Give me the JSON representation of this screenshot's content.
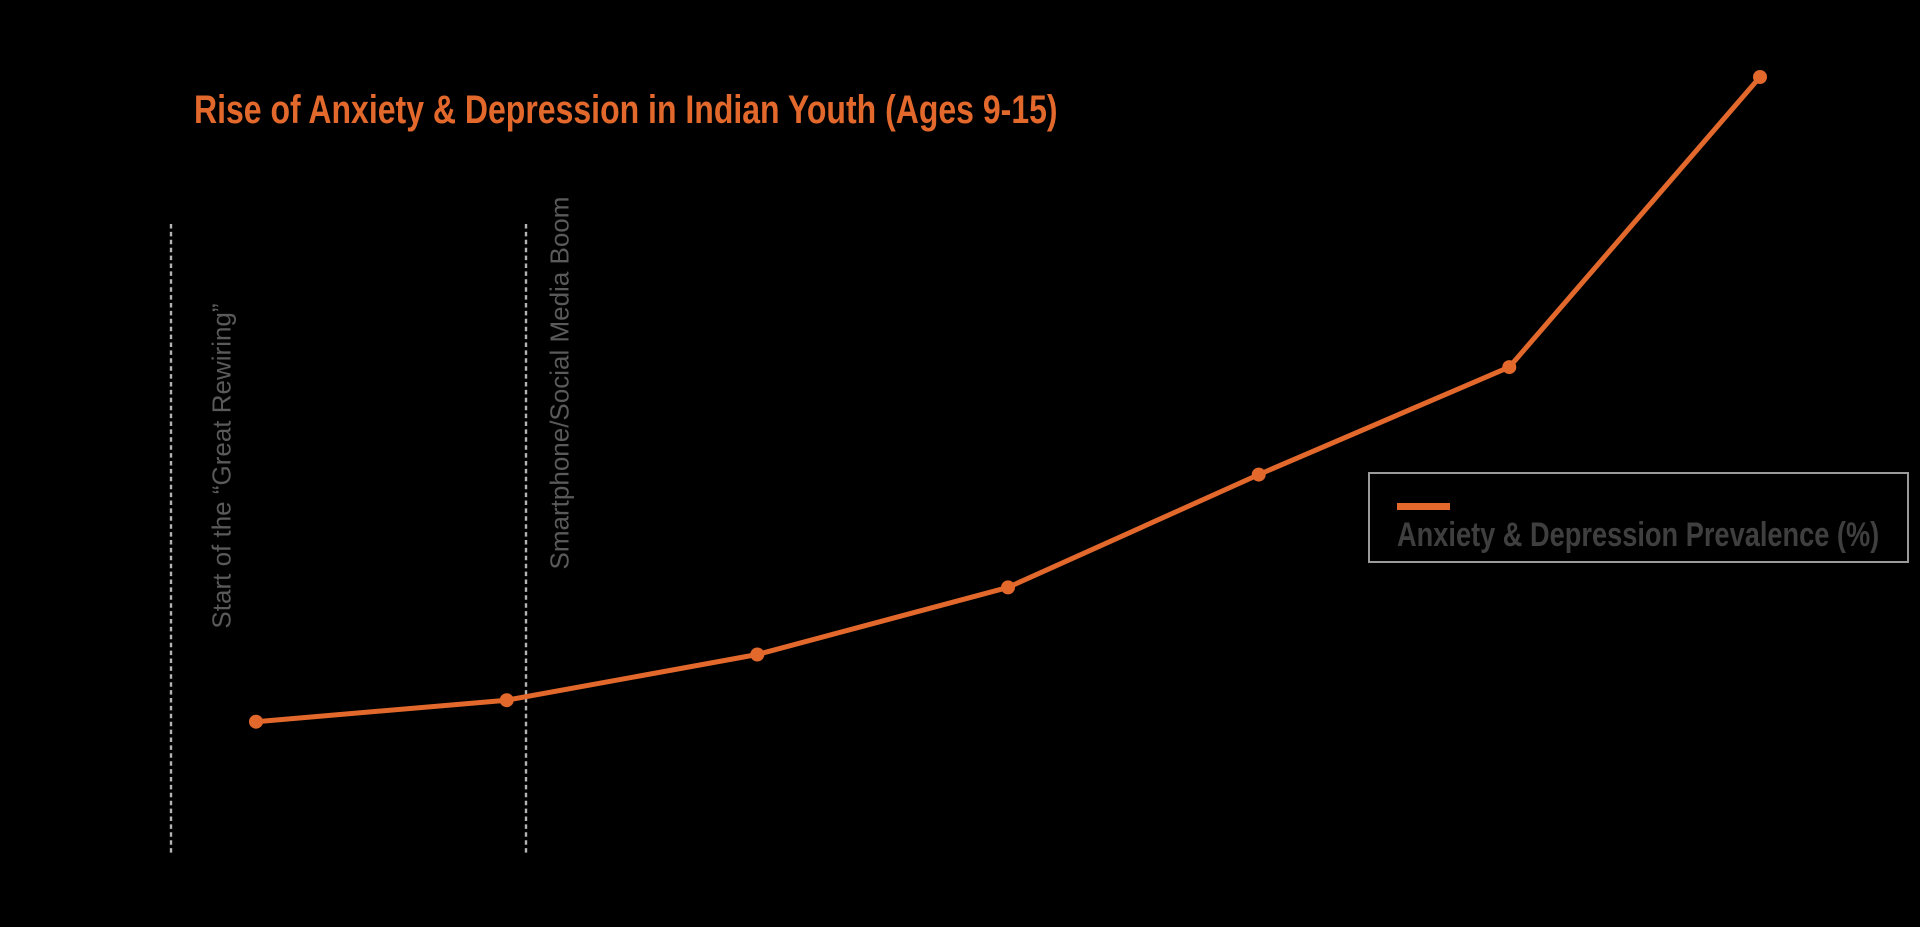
{
  "title": "Rise of Anxiety & Depression in Indian Youth (Ages 9-15)",
  "legend": {
    "label": "Anxiety & Depression Prevalence (%)"
  },
  "annotations": [
    {
      "label": "Start of the “Great Rewiring”"
    },
    {
      "label": "Smartphone/Social Media Boom"
    }
  ],
  "colors": {
    "background": "#000000",
    "accent_orange": "#E2682C",
    "annotation_gray": "#5A5A5A",
    "dashed_line_gray": "#B4B4B4",
    "legend_border": "#9A9A9A",
    "legend_text": "#3F3F3F"
  },
  "chart_data": {
    "type": "line",
    "title": "Rise of Anxiety & Depression in Indian Youth (Ages 9-15)",
    "x": [
      1,
      2,
      3,
      4,
      5,
      6,
      7
    ],
    "series": [
      {
        "name": "Anxiety & Depression Prevalence (%)",
        "values": [
          5,
          5.8,
          7.5,
          10,
          14.2,
          18.2,
          29
        ]
      }
    ],
    "values_estimated_from_pixels": true,
    "xlabel": "",
    "ylabel": "",
    "ylim": [
      0,
      32
    ],
    "x_tick_labels_visible": false,
    "y_tick_labels_visible": false,
    "grid": false,
    "legend_position": "center-right",
    "annotations": [
      "Start of the “Great Rewiring”",
      "Smartphone/Social Media Boom"
    ]
  }
}
